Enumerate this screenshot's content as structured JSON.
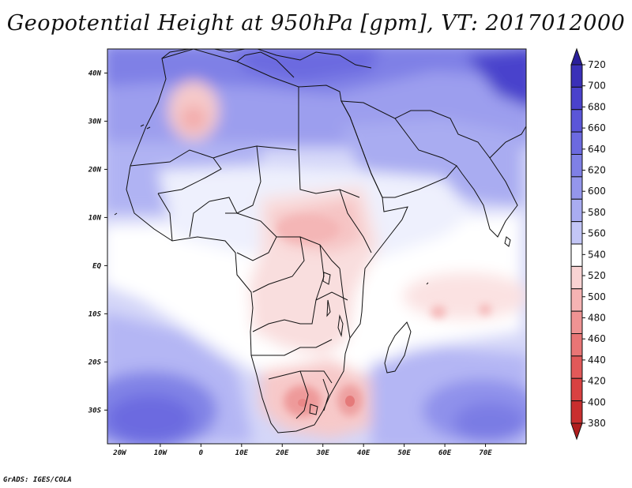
{
  "title": "Geopotential Height at 950hPa [gpm], VT: 2017012000",
  "credit": "GrADS: IGES/COLA",
  "map": {
    "variable": "Geopotential Height",
    "level": "950hPa",
    "units": "gpm",
    "valid_time": "2017012000",
    "lon_range": [
      -23,
      80
    ],
    "lat_range": [
      -37,
      45
    ],
    "lon_ticks": [
      {
        "value": -20,
        "label": "20W"
      },
      {
        "value": -10,
        "label": "10W"
      },
      {
        "value": 0,
        "label": "0"
      },
      {
        "value": 10,
        "label": "10E"
      },
      {
        "value": 20,
        "label": "20E"
      },
      {
        "value": 30,
        "label": "30E"
      },
      {
        "value": 40,
        "label": "40E"
      },
      {
        "value": 50,
        "label": "50E"
      },
      {
        "value": 60,
        "label": "60E"
      },
      {
        "value": 70,
        "label": "70E"
      }
    ],
    "lat_ticks": [
      {
        "value": 40,
        "label": "40N"
      },
      {
        "value": 30,
        "label": "30N"
      },
      {
        "value": 20,
        "label": "20N"
      },
      {
        "value": 10,
        "label": "10N"
      },
      {
        "value": 0,
        "label": "EQ"
      },
      {
        "value": -10,
        "label": "10S"
      },
      {
        "value": -20,
        "label": "20S"
      },
      {
        "value": -30,
        "label": "30S"
      }
    ]
  },
  "colorbar": {
    "levels": [
      720,
      700,
      680,
      660,
      640,
      620,
      600,
      580,
      560,
      540,
      520,
      500,
      480,
      460,
      440,
      420,
      400,
      380
    ],
    "colors": [
      "#2a1f9a",
      "#3a30b8",
      "#4a42cc",
      "#5b56d8",
      "#6c6ae0",
      "#7f80e6",
      "#9496ec",
      "#a9acf1",
      "#c3c6f6",
      "#ffffff",
      "#f9d3d3",
      "#f5b3b3",
      "#ef9393",
      "#e97575",
      "#e25959",
      "#d94141",
      "#c92e2e",
      "#b01e1e"
    ]
  }
}
